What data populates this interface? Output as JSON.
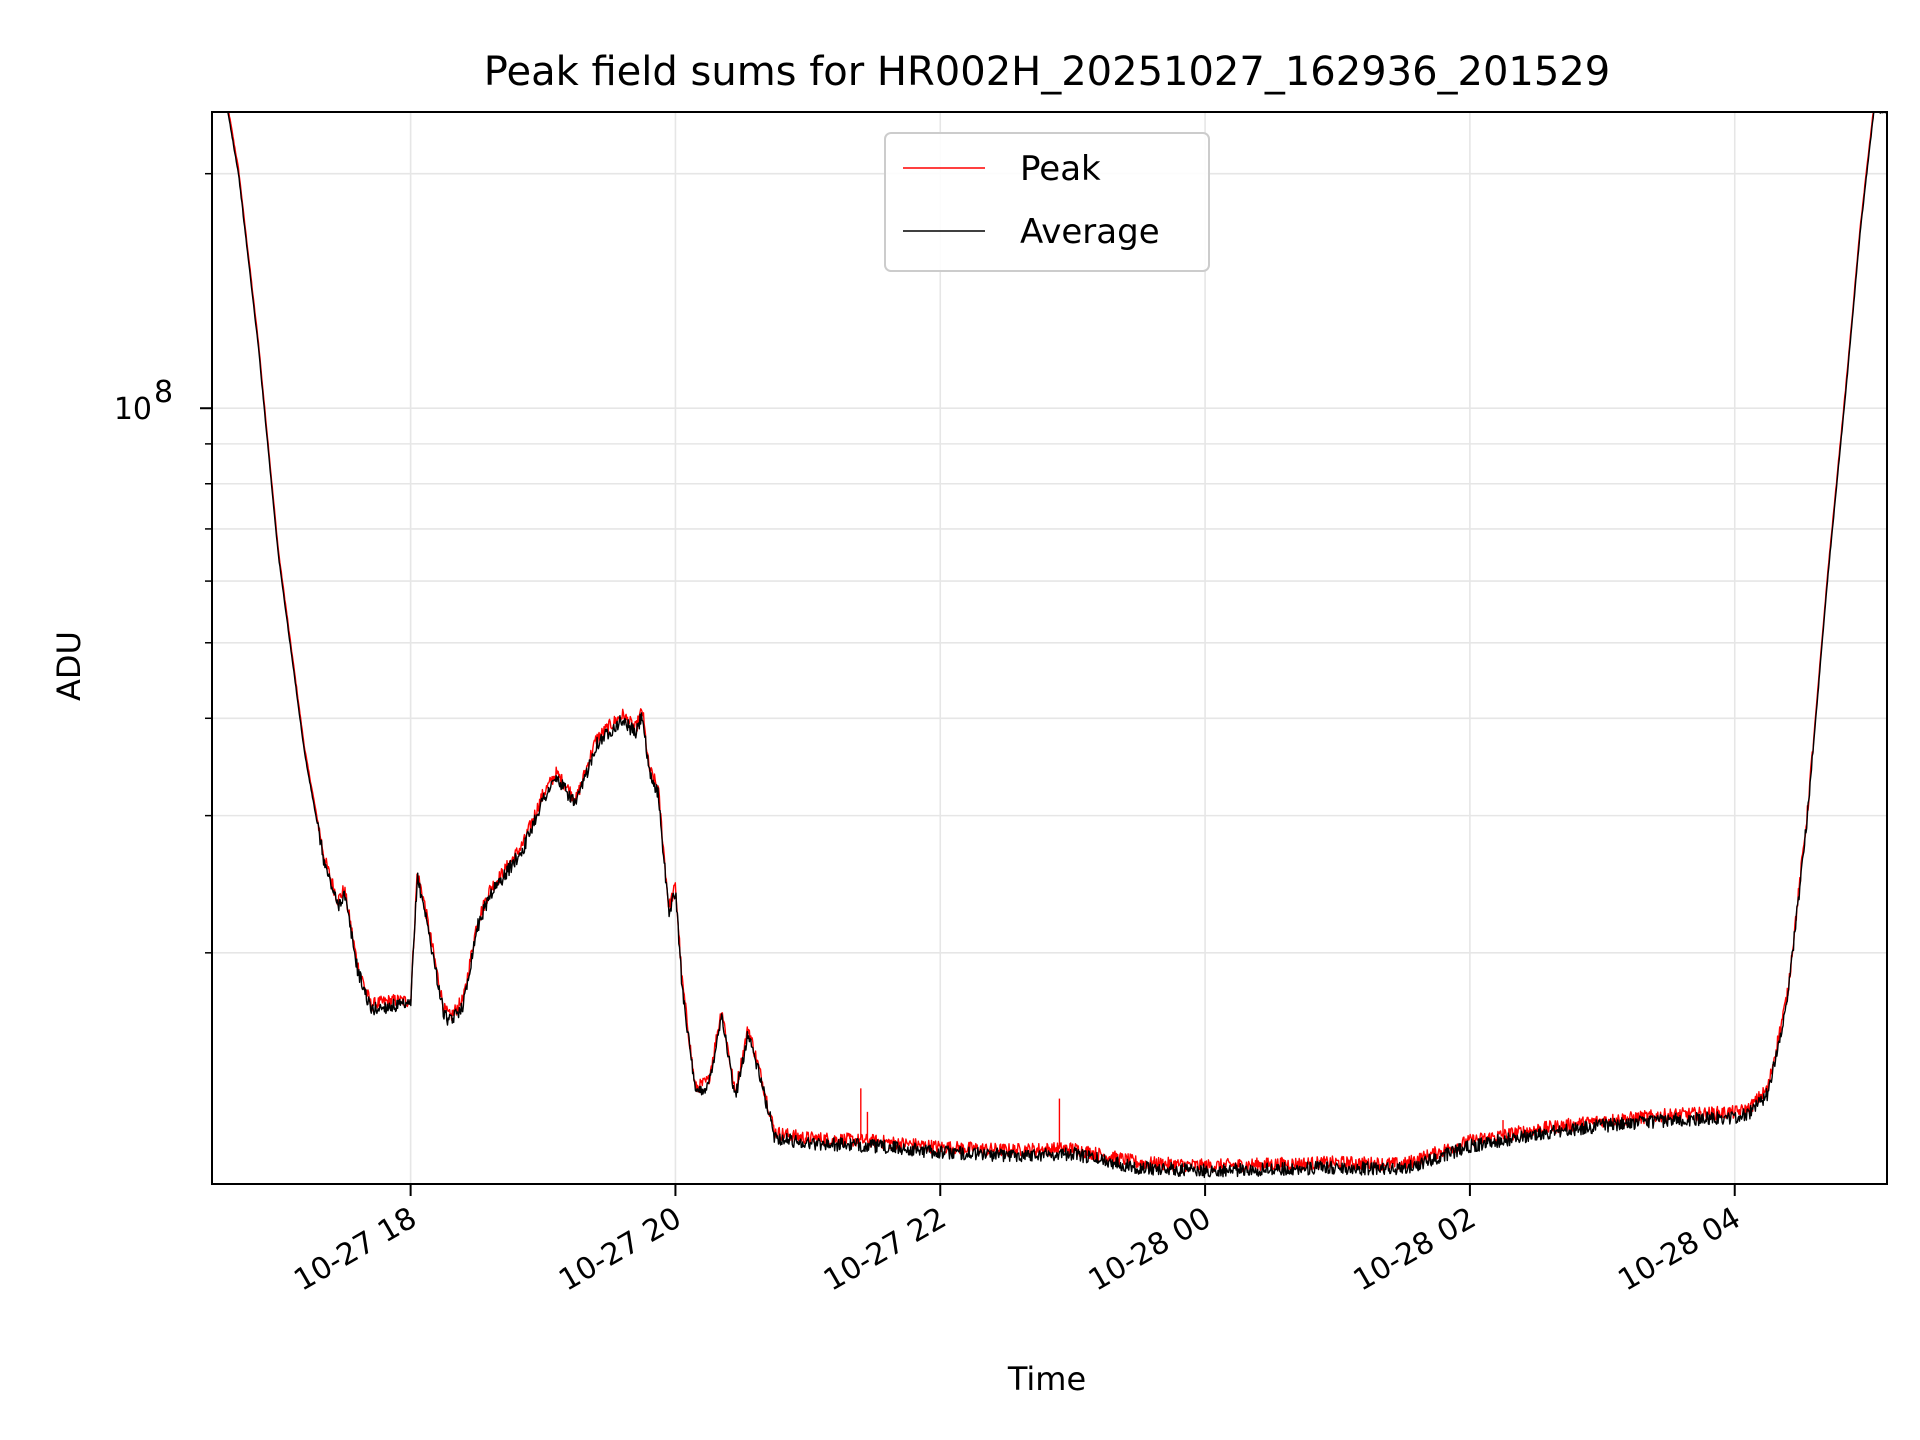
{
  "chart_data": {
    "type": "line",
    "title": "Peak field sums for HR002H_20251027_162936_201529",
    "xlabel": "Time",
    "ylabel": "ADU",
    "yscale": "log",
    "grid": true,
    "legend_position": "upper-center",
    "xlim_hours": [
      16.5,
      29.15
    ],
    "ylim": [
      10100000,
      240000000
    ],
    "x_tick_hours": [
      18,
      20,
      22,
      24,
      26,
      28
    ],
    "x_tick_labels": [
      "10-27 18",
      "10-27 20",
      "10-27 22",
      "10-28 00",
      "10-28 02",
      "10-28 04"
    ],
    "y_major_ticks": [
      {
        "value": 100000000,
        "base": "10",
        "exp": "8"
      }
    ],
    "y_minor_ticks": [
      20000000,
      30000000,
      40000000,
      50000000,
      60000000,
      70000000,
      80000000,
      90000000,
      200000000
    ],
    "series": [
      {
        "name": "Peak",
        "color": "#ff0000",
        "noise": 0.02,
        "offset": 0.015,
        "x_hours": [
          16.6,
          16.62,
          16.7,
          16.85,
          17.0,
          17.2,
          17.35,
          17.45,
          17.5,
          17.6,
          17.7,
          17.85,
          18.0,
          18.05,
          18.1,
          18.25,
          18.3,
          18.4,
          18.5,
          18.6,
          18.7,
          18.85,
          19.0,
          19.1,
          19.25,
          19.4,
          19.5,
          19.6,
          19.7,
          19.75,
          19.8,
          19.87,
          19.95,
          20.0,
          20.05,
          20.15,
          20.25,
          20.35,
          20.45,
          20.55,
          20.65,
          20.75,
          20.85,
          21.0,
          21.5,
          22.0,
          22.5,
          23.0,
          23.5,
          24.0,
          24.5,
          25.0,
          25.5,
          26.0,
          26.5,
          27.0,
          27.5,
          28.0,
          28.1,
          28.25,
          28.4,
          28.55,
          28.7,
          28.85,
          28.95,
          29.05,
          29.15
        ],
        "y_values": [
          240000000,
          240000000,
          200000000,
          120000000,
          65000000,
          36000000,
          26000000,
          23000000,
          23800000,
          19000000,
          16900000,
          17100000,
          17100000,
          25000000,
          23000000,
          16700000,
          16300000,
          17200000,
          21500000,
          23800000,
          25000000,
          27200000,
          31500000,
          33500000,
          31000000,
          37000000,
          38500000,
          39800000,
          38200000,
          40500000,
          34000000,
          32000000,
          22500000,
          24000000,
          18200000,
          13200000,
          13500000,
          16700000,
          13000000,
          15800000,
          13600000,
          11600000,
          11500000,
          11400000,
          11300000,
          11100000,
          11000000,
          11050000,
          10600000,
          10500000,
          10550000,
          10600000,
          10550000,
          11300000,
          11700000,
          12000000,
          12200000,
          12300000,
          12400000,
          13200000,
          17500000,
          30000000,
          60000000,
          110000000,
          170000000,
          240000000,
          240000000
        ],
        "spikes": [
          {
            "x_hours": 21.4,
            "value": 13400000
          },
          {
            "x_hours": 21.45,
            "value": 12500000
          },
          {
            "x_hours": 22.9,
            "value": 13000000
          },
          {
            "x_hours": 26.25,
            "value": 12200000
          }
        ]
      },
      {
        "name": "Average",
        "color": "#000000",
        "noise": 0.02,
        "offset": 0.0,
        "x_hours": [
          16.6,
          16.62,
          16.7,
          16.85,
          17.0,
          17.2,
          17.35,
          17.45,
          17.5,
          17.6,
          17.7,
          17.85,
          18.0,
          18.05,
          18.1,
          18.25,
          18.3,
          18.4,
          18.5,
          18.6,
          18.7,
          18.85,
          19.0,
          19.1,
          19.25,
          19.4,
          19.5,
          19.6,
          19.7,
          19.75,
          19.8,
          19.87,
          19.95,
          20.0,
          20.05,
          20.15,
          20.25,
          20.35,
          20.45,
          20.55,
          20.65,
          20.75,
          20.85,
          21.0,
          21.5,
          22.0,
          22.5,
          23.0,
          23.5,
          24.0,
          24.5,
          25.0,
          25.5,
          26.0,
          26.5,
          27.0,
          27.5,
          28.0,
          28.1,
          28.25,
          28.4,
          28.55,
          28.7,
          28.85,
          28.95,
          29.05,
          29.15
        ],
        "y_values": [
          240000000,
          240000000,
          200000000,
          120000000,
          65000000,
          36000000,
          26000000,
          23000000,
          23800000,
          19000000,
          16900000,
          17100000,
          17100000,
          25000000,
          23000000,
          16700000,
          16300000,
          17200000,
          21500000,
          23800000,
          25000000,
          27200000,
          31500000,
          33500000,
          31000000,
          37000000,
          38500000,
          39800000,
          38200000,
          40500000,
          34000000,
          32000000,
          22500000,
          24000000,
          18200000,
          13200000,
          13500000,
          16700000,
          13000000,
          15800000,
          13600000,
          11600000,
          11500000,
          11400000,
          11300000,
          11100000,
          11000000,
          11050000,
          10600000,
          10500000,
          10550000,
          10600000,
          10550000,
          11300000,
          11700000,
          12000000,
          12200000,
          12300000,
          12400000,
          13200000,
          17500000,
          30000000,
          60000000,
          110000000,
          170000000,
          240000000,
          240000000
        ],
        "spikes": []
      }
    ]
  }
}
